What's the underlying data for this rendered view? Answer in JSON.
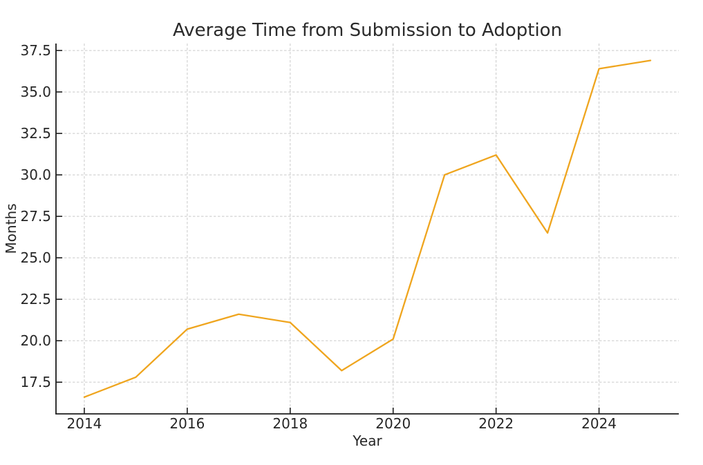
{
  "chart_data": {
    "type": "line",
    "title": "Average Time from Submission to Adoption",
    "xlabel": "Year",
    "ylabel": "Months",
    "x": [
      2014,
      2015,
      2016,
      2017,
      2018,
      2019,
      2020,
      2021,
      2022,
      2023,
      2024,
      2025
    ],
    "values": [
      16.6,
      17.8,
      20.7,
      21.6,
      21.1,
      18.2,
      20.1,
      30.0,
      31.2,
      26.5,
      36.4,
      36.9
    ],
    "xticks": [
      2014,
      2016,
      2018,
      2020,
      2022,
      2024
    ],
    "yticks": [
      17.5,
      20.0,
      22.5,
      25.0,
      27.5,
      30.0,
      32.5,
      35.0,
      37.5
    ],
    "xlim": [
      2013.45,
      2025.55
    ],
    "ylim": [
      15.59,
      37.92
    ],
    "grid": true,
    "grid_style": "dashed",
    "legend": "none",
    "line_color": "#EFA51E",
    "axis_color": "#1c1c1c",
    "grid_color": "#c9c9c9",
    "text_color": "#262626",
    "background": "#ffffff"
  }
}
